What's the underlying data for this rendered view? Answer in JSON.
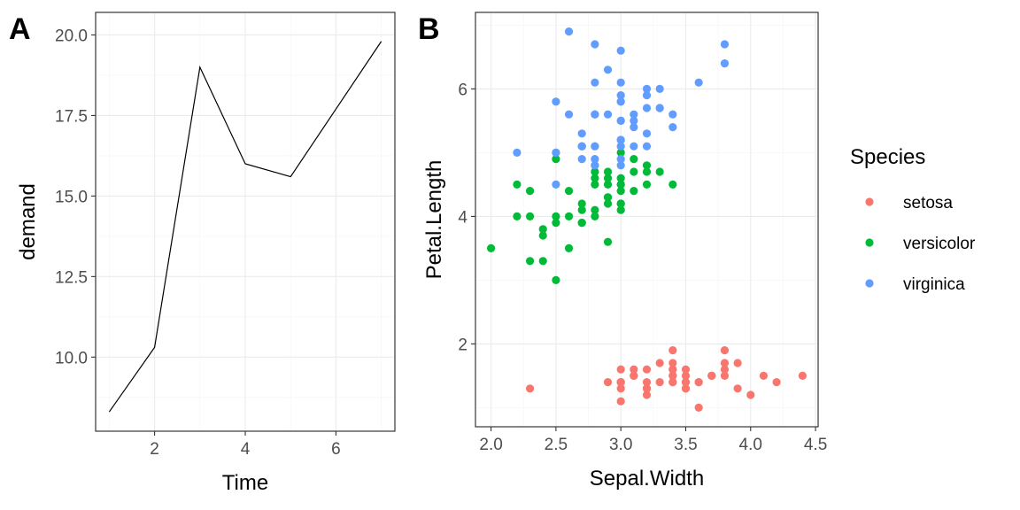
{
  "chart_data": [
    {
      "tag": "A",
      "type": "line",
      "xlabel": "Time",
      "ylabel": "demand",
      "xlim": [
        0.7,
        7.3
      ],
      "ylim": [
        7.7,
        20.7
      ],
      "xticks": [
        2,
        4,
        6
      ],
      "xtick_labels": [
        "2",
        "4",
        "6"
      ],
      "yticks": [
        10,
        12.5,
        15,
        17.5,
        20
      ],
      "ytick_labels": [
        "10.0",
        "12.5",
        "15.0",
        "17.5",
        "20.0"
      ],
      "grid": true,
      "line_color": "#000000",
      "series": [
        {
          "x": [
            1,
            2,
            3,
            4,
            5,
            7
          ],
          "y": [
            8.3,
            10.3,
            19.0,
            16.0,
            15.6,
            19.8
          ]
        }
      ]
    },
    {
      "tag": "B",
      "type": "scatter",
      "xlabel": "Sepal.Width",
      "ylabel": "Petal.Length",
      "xlim": [
        1.88,
        4.52
      ],
      "ylim": [
        0.7,
        7.2
      ],
      "xticks": [
        2.0,
        2.5,
        3.0,
        3.5,
        4.0,
        4.5
      ],
      "xtick_labels": [
        "2.0",
        "2.5",
        "3.0",
        "3.5",
        "4.0",
        "4.5"
      ],
      "yticks": [
        2,
        4,
        6
      ],
      "ytick_labels": [
        "2",
        "4",
        "6"
      ],
      "grid": true,
      "legend": {
        "title": "Species",
        "position": "right"
      },
      "series": [
        {
          "name": "setosa",
          "color": "#F8766D",
          "points": [
            [
              3.5,
              1.4
            ],
            [
              3.0,
              1.4
            ],
            [
              3.2,
              1.3
            ],
            [
              3.1,
              1.5
            ],
            [
              3.6,
              1.4
            ],
            [
              3.9,
              1.7
            ],
            [
              3.4,
              1.4
            ],
            [
              3.4,
              1.5
            ],
            [
              2.9,
              1.4
            ],
            [
              3.1,
              1.5
            ],
            [
              3.7,
              1.5
            ],
            [
              3.4,
              1.6
            ],
            [
              3.0,
              1.4
            ],
            [
              3.0,
              1.1
            ],
            [
              4.0,
              1.2
            ],
            [
              4.4,
              1.5
            ],
            [
              3.9,
              1.3
            ],
            [
              3.5,
              1.4
            ],
            [
              3.8,
              1.7
            ],
            [
              3.8,
              1.5
            ],
            [
              3.4,
              1.7
            ],
            [
              3.7,
              1.5
            ],
            [
              3.6,
              1.0
            ],
            [
              3.3,
              1.7
            ],
            [
              3.4,
              1.9
            ],
            [
              3.0,
              1.6
            ],
            [
              3.4,
              1.6
            ],
            [
              3.5,
              1.5
            ],
            [
              3.4,
              1.4
            ],
            [
              3.2,
              1.6
            ],
            [
              3.1,
              1.6
            ],
            [
              3.4,
              1.5
            ],
            [
              4.1,
              1.5
            ],
            [
              4.2,
              1.4
            ],
            [
              3.1,
              1.5
            ],
            [
              3.2,
              1.2
            ],
            [
              3.5,
              1.3
            ],
            [
              3.6,
              1.4
            ],
            [
              3.0,
              1.3
            ],
            [
              3.4,
              1.5
            ],
            [
              3.5,
              1.3
            ],
            [
              2.3,
              1.3
            ],
            [
              3.2,
              1.3
            ],
            [
              3.5,
              1.6
            ],
            [
              3.8,
              1.9
            ],
            [
              3.0,
              1.4
            ],
            [
              3.8,
              1.6
            ],
            [
              3.2,
              1.4
            ],
            [
              3.7,
              1.5
            ],
            [
              3.3,
              1.4
            ]
          ]
        },
        {
          "name": "versicolor",
          "color": "#00BA38",
          "points": [
            [
              3.2,
              4.7
            ],
            [
              3.2,
              4.5
            ],
            [
              3.1,
              4.9
            ],
            [
              2.3,
              4.0
            ],
            [
              2.8,
              4.6
            ],
            [
              2.8,
              4.5
            ],
            [
              3.3,
              4.7
            ],
            [
              2.4,
              3.3
            ],
            [
              2.9,
              4.6
            ],
            [
              2.7,
              3.9
            ],
            [
              2.0,
              3.5
            ],
            [
              3.0,
              4.2
            ],
            [
              2.2,
              4.0
            ],
            [
              2.9,
              4.7
            ],
            [
              2.9,
              3.6
            ],
            [
              3.1,
              4.4
            ],
            [
              3.0,
              4.5
            ],
            [
              2.7,
              4.1
            ],
            [
              2.2,
              4.5
            ],
            [
              2.5,
              3.9
            ],
            [
              3.2,
              4.8
            ],
            [
              2.8,
              4.0
            ],
            [
              2.5,
              4.9
            ],
            [
              2.8,
              4.7
            ],
            [
              2.9,
              4.3
            ],
            [
              3.0,
              4.4
            ],
            [
              2.8,
              4.8
            ],
            [
              3.0,
              5.0
            ],
            [
              2.9,
              4.5
            ],
            [
              2.6,
              3.5
            ],
            [
              2.4,
              3.8
            ],
            [
              2.4,
              3.7
            ],
            [
              2.7,
              3.9
            ],
            [
              2.7,
              5.1
            ],
            [
              3.0,
              4.5
            ],
            [
              3.4,
              4.5
            ],
            [
              3.1,
              4.7
            ],
            [
              2.3,
              4.4
            ],
            [
              3.0,
              4.1
            ],
            [
              2.5,
              4.0
            ],
            [
              2.6,
              4.4
            ],
            [
              3.0,
              4.6
            ],
            [
              2.6,
              4.0
            ],
            [
              2.3,
              3.3
            ],
            [
              2.7,
              4.2
            ],
            [
              3.0,
              4.2
            ],
            [
              2.9,
              4.2
            ],
            [
              2.9,
              4.3
            ],
            [
              2.5,
              3.0
            ],
            [
              2.8,
              4.1
            ]
          ]
        },
        {
          "name": "virginica",
          "color": "#619CFF",
          "points": [
            [
              3.3,
              6.0
            ],
            [
              2.7,
              5.1
            ],
            [
              3.0,
              5.9
            ],
            [
              2.9,
              5.6
            ],
            [
              3.0,
              5.8
            ],
            [
              3.0,
              6.6
            ],
            [
              2.5,
              4.5
            ],
            [
              2.9,
              6.3
            ],
            [
              2.5,
              5.8
            ],
            [
              3.6,
              6.1
            ],
            [
              3.2,
              5.1
            ],
            [
              2.7,
              5.3
            ],
            [
              3.0,
              5.5
            ],
            [
              2.5,
              5.0
            ],
            [
              2.8,
              5.1
            ],
            [
              3.2,
              5.3
            ],
            [
              3.0,
              5.5
            ],
            [
              3.8,
              6.7
            ],
            [
              2.6,
              6.9
            ],
            [
              2.2,
              5.0
            ],
            [
              3.2,
              5.7
            ],
            [
              2.8,
              4.9
            ],
            [
              2.8,
              6.7
            ],
            [
              2.7,
              4.9
            ],
            [
              3.3,
              5.7
            ],
            [
              3.2,
              6.0
            ],
            [
              2.8,
              4.8
            ],
            [
              3.0,
              4.9
            ],
            [
              2.8,
              5.6
            ],
            [
              3.0,
              5.8
            ],
            [
              2.8,
              6.1
            ],
            [
              3.8,
              6.4
            ],
            [
              2.8,
              5.6
            ],
            [
              2.8,
              5.1
            ],
            [
              2.6,
              5.6
            ],
            [
              3.0,
              6.1
            ],
            [
              3.4,
              5.6
            ],
            [
              3.1,
              5.5
            ],
            [
              3.0,
              4.8
            ],
            [
              3.1,
              5.4
            ],
            [
              3.1,
              5.6
            ],
            [
              3.1,
              5.1
            ],
            [
              2.7,
              5.1
            ],
            [
              3.2,
              5.9
            ],
            [
              3.3,
              5.7
            ],
            [
              3.0,
              5.2
            ],
            [
              2.5,
              5.0
            ],
            [
              3.0,
              5.2
            ],
            [
              3.4,
              5.4
            ],
            [
              3.0,
              5.1
            ]
          ]
        }
      ]
    }
  ]
}
